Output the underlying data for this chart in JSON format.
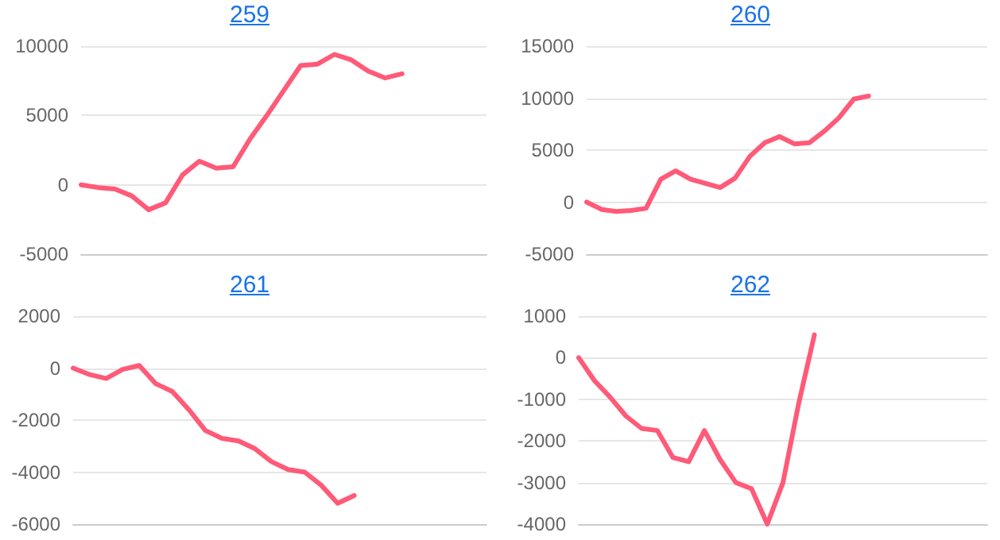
{
  "chart_data": [
    {
      "type": "line",
      "title": "259",
      "categories": [
        null,
        null,
        null,
        null,
        null,
        null,
        null,
        null,
        null,
        null,
        null,
        null,
        null,
        null,
        null,
        null,
        null,
        null,
        null,
        null,
        null,
        null,
        null,
        null,
        null
      ],
      "series": [
        {
          "color": "#ff5a78",
          "values": [
            0,
            -200,
            -300,
            -800,
            -1800,
            -1300,
            700,
            1700,
            1200,
            1300,
            3300,
            5000,
            6800,
            8600,
            8700,
            9400,
            9000,
            8200,
            7700,
            8000,
            null,
            null,
            null,
            null,
            null
          ]
        }
      ],
      "ylim": [
        -5000,
        10000
      ],
      "yticks": [
        -5000,
        0,
        5000,
        10000
      ],
      "grid": "y",
      "marker": "none",
      "line_style": "solid"
    },
    {
      "type": "line",
      "title": "260",
      "categories": [
        null,
        null,
        null,
        null,
        null,
        null,
        null,
        null,
        null,
        null,
        null,
        null,
        null,
        null,
        null,
        null,
        null,
        null,
        null,
        null,
        null,
        null,
        null,
        null,
        null,
        null,
        null,
        null
      ],
      "series": [
        {
          "color": "#ff5a78",
          "values": [
            0,
            -700,
            -900,
            -800,
            -600,
            2200,
            3000,
            2200,
            1800,
            1400,
            2300,
            4400,
            5700,
            6300,
            5600,
            5700,
            6800,
            8100,
            9900,
            10200,
            null,
            null,
            null,
            null,
            null,
            null,
            null,
            null
          ]
        }
      ],
      "ylim": [
        -5000,
        15000
      ],
      "yticks": [
        -5000,
        0,
        5000,
        10000,
        15000
      ],
      "grid": "y",
      "marker": "none",
      "line_style": "solid"
    },
    {
      "type": "line",
      "title": "261",
      "categories": [
        null,
        null,
        null,
        null,
        null,
        null,
        null,
        null,
        null,
        null,
        null,
        null,
        null,
        null,
        null,
        null,
        null,
        null,
        null,
        null,
        null,
        null,
        null,
        null,
        null,
        null
      ],
      "series": [
        {
          "color": "#ff5a78",
          "values": [
            0,
            -250,
            -400,
            -50,
            100,
            -600,
            -900,
            -1600,
            -2400,
            -2700,
            -2800,
            -3100,
            -3600,
            -3900,
            -4000,
            -4500,
            -5200,
            -4900,
            null,
            null,
            null,
            null,
            null,
            null,
            null,
            null
          ]
        }
      ],
      "ylim": [
        -6000,
        2000
      ],
      "yticks": [
        -6000,
        -4000,
        -2000,
        0,
        2000
      ],
      "grid": "y",
      "marker": "none",
      "line_style": "solid"
    },
    {
      "type": "line",
      "title": "262",
      "categories": [
        null,
        null,
        null,
        null,
        null,
        null,
        null,
        null,
        null,
        null,
        null,
        null,
        null,
        null,
        null,
        null,
        null,
        null,
        null,
        null,
        null,
        null,
        null,
        null,
        null,
        null,
        null
      ],
      "series": [
        {
          "color": "#ff5a78",
          "values": [
            0,
            -550,
            -950,
            -1400,
            -1700,
            -1750,
            -2400,
            -2500,
            -1750,
            -2450,
            -3000,
            -3150,
            -4000,
            -3000,
            -1100,
            550,
            null,
            null,
            null,
            null,
            null,
            null,
            null,
            null,
            null,
            null,
            null
          ]
        }
      ],
      "ylim": [
        -4000,
        1000
      ],
      "yticks": [
        -4000,
        -3000,
        -2000,
        -1000,
        0,
        1000
      ],
      "grid": "y",
      "marker": "none",
      "line_style": "solid"
    }
  ]
}
